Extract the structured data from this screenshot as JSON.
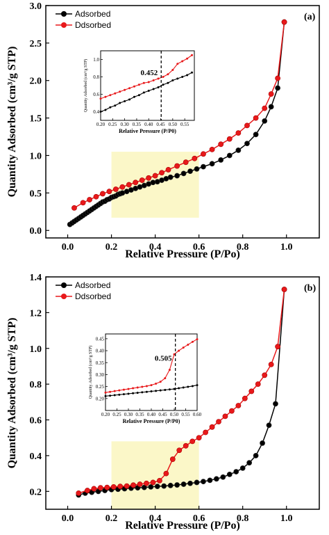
{
  "chart_data": [
    {
      "type": "line",
      "panel_label": "(a)",
      "xlabel": "Relative Pressure (P/Po)",
      "ylabel": "Quantity Adsorbed (cm³/g STP)",
      "xlim": [
        -0.1,
        1.15
      ],
      "ylim": [
        -0.1,
        3.0
      ],
      "xticks": [
        0.0,
        0.2,
        0.4,
        0.6,
        0.8,
        1.0
      ],
      "xtick_labels": [
        "0.0",
        "0.2",
        "0.4",
        "0.6",
        "0.8",
        "1.0"
      ],
      "yticks": [
        0.0,
        0.5,
        1.0,
        1.5,
        2.0,
        2.5,
        3.0
      ],
      "ytick_labels": [
        "0.0",
        "0.5",
        "1.0",
        "1.5",
        "2.0",
        "2.5",
        "3.0"
      ],
      "legend_position": "top-left",
      "highlight": {
        "x": [
          0.2,
          0.6
        ],
        "y": [
          0.17,
          1.05
        ],
        "color": "#fbf7c8"
      },
      "series": [
        {
          "name": "Adsorbed",
          "color": "#000000",
          "x": [
            0.01,
            0.02,
            0.03,
            0.04,
            0.05,
            0.06,
            0.07,
            0.08,
            0.09,
            0.1,
            0.11,
            0.12,
            0.13,
            0.14,
            0.15,
            0.16,
            0.17,
            0.18,
            0.19,
            0.2,
            0.21,
            0.22,
            0.23,
            0.24,
            0.25,
            0.27,
            0.29,
            0.31,
            0.33,
            0.35,
            0.37,
            0.39,
            0.41,
            0.43,
            0.45,
            0.47,
            0.5,
            0.53,
            0.56,
            0.59,
            0.62,
            0.66,
            0.7,
            0.74,
            0.78,
            0.82,
            0.86,
            0.9,
            0.93,
            0.96,
            0.99
          ],
          "y": [
            0.08,
            0.1,
            0.12,
            0.14,
            0.16,
            0.18,
            0.2,
            0.22,
            0.24,
            0.26,
            0.28,
            0.3,
            0.32,
            0.34,
            0.36,
            0.38,
            0.39,
            0.41,
            0.42,
            0.44,
            0.45,
            0.46,
            0.48,
            0.49,
            0.5,
            0.52,
            0.54,
            0.56,
            0.58,
            0.6,
            0.62,
            0.64,
            0.65,
            0.67,
            0.69,
            0.71,
            0.73,
            0.76,
            0.79,
            0.82,
            0.85,
            0.89,
            0.94,
            1.0,
            1.07,
            1.16,
            1.28,
            1.46,
            1.65,
            1.9,
            2.78
          ]
        },
        {
          "name": "Ddsorbed",
          "color": "#e8191b",
          "x": [
            0.99,
            0.96,
            0.93,
            0.9,
            0.86,
            0.82,
            0.78,
            0.74,
            0.7,
            0.66,
            0.62,
            0.58,
            0.54,
            0.5,
            0.46,
            0.43,
            0.4,
            0.37,
            0.34,
            0.31,
            0.28,
            0.25,
            0.22,
            0.19,
            0.16,
            0.13,
            0.1,
            0.07,
            0.03
          ],
          "y": [
            2.78,
            2.03,
            1.82,
            1.63,
            1.5,
            1.4,
            1.3,
            1.22,
            1.15,
            1.08,
            1.02,
            0.96,
            0.91,
            0.86,
            0.81,
            0.77,
            0.73,
            0.7,
            0.67,
            0.64,
            0.61,
            0.58,
            0.55,
            0.52,
            0.49,
            0.45,
            0.41,
            0.37,
            0.3
          ]
        }
      ],
      "inset": {
        "xlabel": "Relative Pressure (P/P0)",
        "ylabel": "Quantity Adsorbed (cm³/g STP)",
        "xlim": [
          0.2,
          0.59
        ],
        "ylim": [
          0.3,
          1.1
        ],
        "xticks": [
          0.2,
          0.25,
          0.3,
          0.35,
          0.4,
          0.45,
          0.5,
          0.55
        ],
        "xtick_labels": [
          "0.20",
          "0.25",
          "0.30",
          "0.35",
          "0.40",
          "0.45",
          "0.50",
          "0.55"
        ],
        "yticks": [
          0.4,
          0.6,
          0.8,
          1.0
        ],
        "ytick_labels": [
          "0.4",
          "0.6",
          "0.8",
          "1.0"
        ],
        "marker_x": 0.452,
        "marker_label": "0.452",
        "series": [
          {
            "name": "Adsorbed",
            "color": "#000000",
            "x": [
              0.2,
              0.22,
              0.24,
              0.26,
              0.28,
              0.3,
              0.32,
              0.34,
              0.36,
              0.38,
              0.4,
              0.42,
              0.44,
              0.46,
              0.48,
              0.5,
              0.52,
              0.54,
              0.56,
              0.58
            ],
            "y": [
              0.4,
              0.42,
              0.45,
              0.47,
              0.5,
              0.52,
              0.54,
              0.57,
              0.59,
              0.62,
              0.64,
              0.66,
              0.68,
              0.71,
              0.73,
              0.76,
              0.78,
              0.8,
              0.82,
              0.85
            ]
          },
          {
            "name": "Ddsorbed",
            "color": "#e8191b",
            "x": [
              0.2,
              0.22,
              0.24,
              0.26,
              0.28,
              0.3,
              0.32,
              0.34,
              0.36,
              0.38,
              0.4,
              0.42,
              0.44,
              0.46,
              0.48,
              0.5,
              0.52,
              0.54,
              0.56,
              0.58
            ],
            "y": [
              0.55,
              0.57,
              0.59,
              0.61,
              0.63,
              0.65,
              0.67,
              0.69,
              0.71,
              0.73,
              0.74,
              0.76,
              0.78,
              0.8,
              0.83,
              0.88,
              0.95,
              0.98,
              1.01,
              1.05
            ]
          }
        ]
      }
    },
    {
      "type": "line",
      "panel_label": "(b)",
      "xlabel": "Relative Pressure (P/Po)",
      "ylabel": "Quantity Adsorbed (cm³/g STP)",
      "xlim": [
        -0.1,
        1.15
      ],
      "ylim": [
        0.1,
        1.4
      ],
      "xticks": [
        0.0,
        0.2,
        0.4,
        0.6,
        0.8,
        1.0
      ],
      "xtick_labels": [
        "0.0",
        "0.2",
        "0.4",
        "0.6",
        "0.8",
        "1.0"
      ],
      "yticks": [
        0.2,
        0.4,
        0.6,
        0.8,
        1.0,
        1.2,
        1.4
      ],
      "ytick_labels": [
        "0.2",
        "0.4",
        "0.6",
        "0.8",
        "1.0",
        "1.2",
        "1.4"
      ],
      "legend_position": "top-left",
      "highlight": {
        "x": [
          0.2,
          0.6
        ],
        "y": [
          0.1,
          0.48
        ],
        "color": "#fbf7c8"
      },
      "series": [
        {
          "name": "Adsorbed",
          "color": "#000000",
          "x": [
            0.05,
            0.08,
            0.11,
            0.14,
            0.17,
            0.2,
            0.23,
            0.26,
            0.29,
            0.32,
            0.35,
            0.38,
            0.41,
            0.44,
            0.47,
            0.5,
            0.53,
            0.56,
            0.59,
            0.62,
            0.65,
            0.68,
            0.71,
            0.74,
            0.77,
            0.8,
            0.83,
            0.86,
            0.89,
            0.92,
            0.95,
            0.99
          ],
          "y": [
            0.18,
            0.19,
            0.195,
            0.2,
            0.205,
            0.21,
            0.212,
            0.215,
            0.218,
            0.22,
            0.222,
            0.225,
            0.228,
            0.23,
            0.233,
            0.236,
            0.24,
            0.245,
            0.25,
            0.255,
            0.262,
            0.27,
            0.28,
            0.295,
            0.31,
            0.33,
            0.36,
            0.4,
            0.47,
            0.57,
            0.69,
            1.33
          ]
        },
        {
          "name": "Ddsorbed",
          "color": "#e8191b",
          "x": [
            0.99,
            0.96,
            0.93,
            0.9,
            0.87,
            0.84,
            0.81,
            0.78,
            0.75,
            0.72,
            0.69,
            0.66,
            0.63,
            0.6,
            0.57,
            0.54,
            0.51,
            0.48,
            0.45,
            0.42,
            0.39,
            0.36,
            0.33,
            0.3,
            0.27,
            0.24,
            0.21,
            0.18,
            0.15,
            0.12,
            0.09,
            0.05
          ],
          "y": [
            1.33,
            1.01,
            0.91,
            0.85,
            0.8,
            0.76,
            0.72,
            0.68,
            0.65,
            0.62,
            0.59,
            0.56,
            0.53,
            0.5,
            0.48,
            0.455,
            0.43,
            0.38,
            0.3,
            0.26,
            0.25,
            0.245,
            0.24,
            0.235,
            0.23,
            0.228,
            0.225,
            0.222,
            0.22,
            0.215,
            0.205,
            0.19
          ]
        }
      ],
      "inset": {
        "xlabel": "Relative Pressure (P/P0)",
        "ylabel": "Quantity Adsorbed (cm³/g STP)",
        "xlim": [
          0.2,
          0.6
        ],
        "ylim": [
          0.15,
          0.47
        ],
        "xticks": [
          0.2,
          0.25,
          0.3,
          0.35,
          0.4,
          0.45,
          0.5,
          0.55,
          0.6
        ],
        "xtick_labels": [
          "0.20",
          "0.25",
          "0.30",
          "0.35",
          "0.40",
          "0.45",
          "0.50",
          "0.55",
          "0.60"
        ],
        "yticks": [
          0.2,
          0.25,
          0.3,
          0.35,
          0.4,
          0.45
        ],
        "ytick_labels": [
          "0.20",
          "0.25",
          "0.30",
          "0.35",
          "0.40",
          "0.45"
        ],
        "marker_x": 0.505,
        "marker_label": "0.505",
        "series": [
          {
            "name": "Adsorbed",
            "color": "#000000",
            "x": [
              0.2,
              0.22,
              0.24,
              0.26,
              0.28,
              0.3,
              0.32,
              0.34,
              0.36,
              0.38,
              0.4,
              0.42,
              0.44,
              0.46,
              0.48,
              0.5,
              0.52,
              0.54,
              0.56,
              0.58,
              0.6
            ],
            "y": [
              0.21,
              0.212,
              0.214,
              0.216,
              0.218,
              0.22,
              0.222,
              0.224,
              0.226,
              0.228,
              0.23,
              0.232,
              0.234,
              0.236,
              0.238,
              0.24,
              0.243,
              0.246,
              0.249,
              0.252,
              0.256
            ]
          },
          {
            "name": "Ddsorbed",
            "color": "#e8191b",
            "x": [
              0.2,
              0.22,
              0.24,
              0.26,
              0.28,
              0.3,
              0.32,
              0.34,
              0.36,
              0.38,
              0.4,
              0.42,
              0.44,
              0.46,
              0.48,
              0.5,
              0.52,
              0.54,
              0.56,
              0.58,
              0.6
            ],
            "y": [
              0.225,
              0.228,
              0.231,
              0.234,
              0.237,
              0.24,
              0.243,
              0.246,
              0.249,
              0.252,
              0.256,
              0.262,
              0.27,
              0.285,
              0.32,
              0.385,
              0.4,
              0.413,
              0.425,
              0.437,
              0.448
            ]
          }
        ]
      }
    }
  ]
}
